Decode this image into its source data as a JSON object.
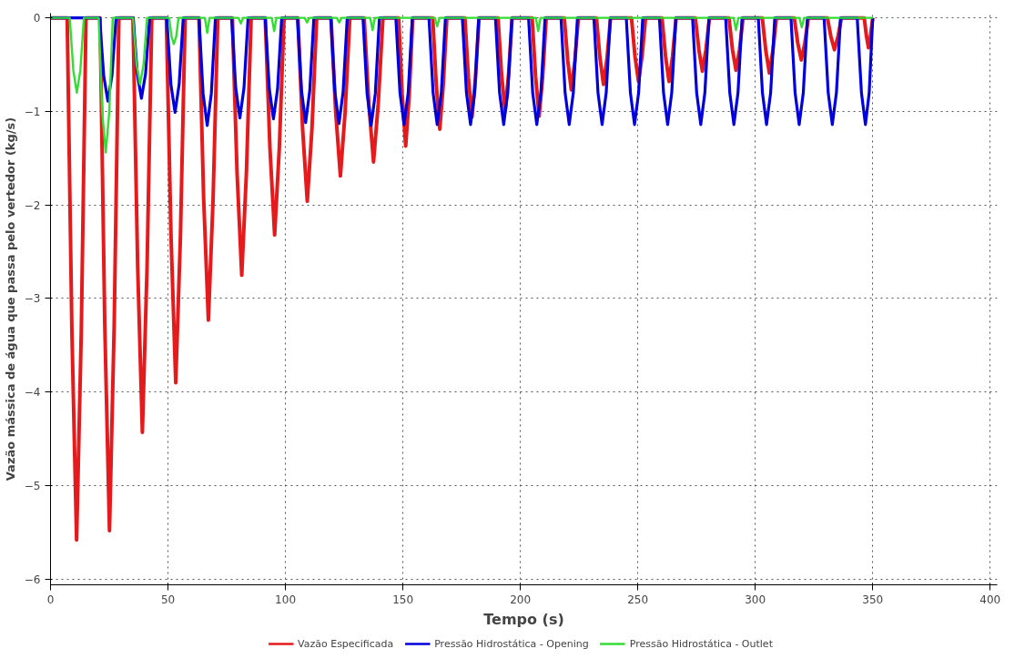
{
  "chart_data": {
    "type": "line",
    "xlabel": "Tempo (s)",
    "ylabel": "Vazão mássica de água que passa pelo vertedor (kg/s)",
    "xlim": [
      0,
      403
    ],
    "ylim": [
      -6.06,
      0.05
    ],
    "xticks": [
      0,
      50,
      100,
      150,
      200,
      250,
      300,
      350,
      400
    ],
    "yticks": [
      -6,
      -5,
      -4,
      -3,
      -2,
      -1,
      0
    ],
    "grid": true,
    "legend": "bottom",
    "line_style": "solid",
    "marker": "none",
    "series": [
      {
        "name": "Vazão Especificada",
        "color": "#e41a1c",
        "x": [
          0,
          7.1,
          9.1,
          11.1,
          13.1,
          15.1,
          21.1,
          23.1,
          25.1,
          27.1,
          29.1,
          35.1,
          37.1,
          39.1,
          41.1,
          43.1,
          49.3,
          51.3,
          53.3,
          55.3,
          57.3,
          63.2,
          65.2,
          67.2,
          69.2,
          71.2,
          77.4,
          79.4,
          81.4,
          83.4,
          85.4,
          91.4,
          93.4,
          95.4,
          97.4,
          99.4,
          105.3,
          107.3,
          109.3,
          111.3,
          113.3,
          119.4,
          121.4,
          123.4,
          125.4,
          127.4,
          133.5,
          135.5,
          137.5,
          139.5,
          141.5,
          148.2,
          149.7,
          151.2,
          152.7,
          154.2,
          162.7,
          164.2,
          165.7,
          167.2,
          168.7,
          176.4,
          177.9,
          179.4,
          180.9,
          182.4,
          190.5,
          192,
          193.5,
          195,
          196.5,
          205,
          206.5,
          208,
          209.5,
          211,
          218.7,
          220.2,
          221.7,
          223.2,
          224.7,
          232.4,
          233.9,
          235.4,
          236.9,
          238.4,
          247.3,
          248.8,
          250.3,
          251.8,
          253.3,
          260.3,
          261.8,
          263.3,
          264.8,
          266.3,
          274.5,
          276,
          277.5,
          279,
          280.5,
          288.8,
          290.3,
          291.8,
          293.3,
          294.8,
          303,
          304.5,
          306,
          307.5,
          309,
          316.6,
          318.1,
          319.6,
          321.1,
          322.6,
          330.7,
          332.2,
          333.7,
          335.2,
          336.7,
          346.4,
          347.3,
          348.2,
          349.1,
          350
        ],
        "values": [
          0,
          0,
          -3.35,
          -5.58,
          -3.35,
          0,
          0,
          -3.29,
          -5.48,
          -3.29,
          0,
          0,
          -2.66,
          -4.43,
          -2.66,
          0,
          0,
          -2.34,
          -3.9,
          -2.34,
          0,
          0,
          -1.94,
          -3.23,
          -1.94,
          0,
          0,
          -1.65,
          -2.75,
          -1.65,
          0,
          0,
          -1.39,
          -2.32,
          -1.39,
          0,
          0,
          -1.18,
          -1.96,
          -1.18,
          0,
          0,
          -1.01,
          -1.69,
          -1.01,
          0,
          0,
          -0.92,
          -1.54,
          -0.92,
          0,
          0,
          -0.82,
          -1.37,
          -0.82,
          0,
          0,
          -0.71,
          -1.19,
          -0.71,
          0,
          0,
          -0.64,
          -1.06,
          -0.64,
          0,
          0,
          -0.6,
          -1.0,
          -0.6,
          0,
          0,
          -0.63,
          -1.05,
          -0.63,
          0,
          0,
          -0.46,
          -0.77,
          -0.46,
          0,
          0,
          -0.43,
          -0.71,
          -0.43,
          0,
          0,
          -0.41,
          -0.68,
          -0.41,
          0,
          0,
          -0.41,
          -0.68,
          -0.41,
          0,
          0,
          -0.34,
          -0.57,
          -0.34,
          0,
          0,
          -0.34,
          -0.56,
          -0.34,
          0,
          0,
          -0.35,
          -0.59,
          -0.35,
          0,
          0,
          -0.27,
          -0.45,
          -0.27,
          0,
          0,
          -0.2,
          -0.34,
          -0.2,
          0,
          0,
          -0.19,
          -0.32,
          -0.19,
          0
        ]
      },
      {
        "name": "Pressão Hidrostática - Opening",
        "color": "#0000dd",
        "x": [
          0,
          20.9,
          22.65,
          24.4,
          26.15,
          27.9,
          35.2,
          36.95,
          38.7,
          40.45,
          42.2,
          49.5,
          51.25,
          53,
          54.75,
          56.5,
          63.2,
          64.95,
          66.7,
          68.45,
          70.2,
          77.1,
          78.85,
          80.6,
          82.35,
          84.1,
          91.4,
          93.15,
          94.9,
          96.65,
          98.4,
          105.1,
          106.85,
          108.6,
          110.35,
          112.1,
          119.3,
          121.05,
          122.8,
          124.55,
          126.3,
          133,
          134.75,
          136.5,
          138.25,
          140,
          147,
          148.75,
          150.5,
          152.25,
          154,
          161.1,
          162.85,
          164.6,
          166.35,
          168.1,
          175.3,
          177.05,
          178.8,
          180.55,
          182.3,
          189.4,
          191.15,
          192.9,
          194.65,
          196.4,
          203.5,
          205.25,
          207,
          208.75,
          210.5,
          217.3,
          219.05,
          220.8,
          222.55,
          224.3,
          231.3,
          233.05,
          234.8,
          236.55,
          238.3,
          245.1,
          246.85,
          248.6,
          250.35,
          252.1,
          259.2,
          260.95,
          262.7,
          264.45,
          266.2,
          273.3,
          275.05,
          276.8,
          278.55,
          280.3,
          287.4,
          289.15,
          290.9,
          292.65,
          294.4,
          301.3,
          303.05,
          304.8,
          306.55,
          308.3,
          315.2,
          316.95,
          318.7,
          320.45,
          322.2,
          329.3,
          331.05,
          332.8,
          334.55,
          336.3,
          343.4,
          345.2,
          346.9,
          348.5,
          350
        ],
        "values": [
          0,
          0,
          -0.62,
          -0.89,
          -0.62,
          0,
          0,
          -0.6,
          -0.86,
          -0.6,
          0,
          0,
          -0.71,
          -1.01,
          -0.71,
          0,
          0,
          -0.81,
          -1.15,
          -0.81,
          0,
          0,
          -0.75,
          -1.07,
          -0.75,
          0,
          0,
          -0.76,
          -1.08,
          -0.76,
          0,
          0,
          -0.78,
          -1.12,
          -0.78,
          0,
          0,
          -0.79,
          -1.13,
          -0.79,
          0,
          0,
          -0.81,
          -1.15,
          -0.81,
          0,
          0,
          -0.8,
          -1.14,
          -0.8,
          0,
          0,
          -0.8,
          -1.14,
          -0.8,
          0,
          0,
          -0.8,
          -1.14,
          -0.8,
          0,
          0,
          -0.8,
          -1.14,
          -0.8,
          0,
          0,
          -0.8,
          -1.14,
          -0.8,
          0,
          0,
          -0.8,
          -1.14,
          -0.8,
          0,
          0,
          -0.8,
          -1.14,
          -0.8,
          0,
          0,
          -0.8,
          -1.14,
          -0.8,
          0,
          0,
          -0.8,
          -1.14,
          -0.8,
          0,
          0,
          -0.8,
          -1.14,
          -0.8,
          0,
          0,
          -0.8,
          -1.14,
          -0.8,
          0,
          0,
          -0.8,
          -1.14,
          -0.8,
          0,
          0,
          -0.8,
          -1.14,
          -0.8,
          0,
          0,
          -0.8,
          -1.14,
          -0.8,
          0,
          0,
          -0.8,
          -1.14,
          -0.8,
          0
        ]
      },
      {
        "name": "Pressão Hidrostática - Outlet",
        "color": "#33dd33",
        "x": [
          0,
          8.2,
          9.7,
          11.2,
          12.7,
          14.2,
          20.5,
          22,
          23.5,
          25,
          26.5,
          35.1,
          36.6,
          38.1,
          39.6,
          41.1,
          50.5,
          51.5,
          52.5,
          53.5,
          54.5,
          65.7,
          66.7,
          67.7,
          80,
          81,
          82,
          94.2,
          95.2,
          96.2,
          108.2,
          109.2,
          110.2,
          121.9,
          122.9,
          123.9,
          136.1,
          137.1,
          138.1,
          163.6,
          164.6,
          165.6,
          206.6,
          207.6,
          208.6,
          290.8,
          291.8,
          292.8,
          318.8,
          319.8,
          320.8,
          350
        ],
        "values": [
          0,
          0,
          -0.56,
          -0.8,
          -0.56,
          0,
          0,
          -1.01,
          -1.44,
          -1.01,
          0,
          0,
          -0.5,
          -0.71,
          -0.5,
          0,
          0,
          -0.2,
          -0.28,
          -0.2,
          0,
          0,
          -0.16,
          0,
          0,
          -0.06,
          0,
          0,
          -0.14,
          0,
          0,
          -0.05,
          0,
          0,
          -0.05,
          0,
          0,
          -0.13,
          0,
          0,
          -0.09,
          0,
          0,
          -0.14,
          0,
          0,
          -0.13,
          0,
          0,
          -0.1,
          0,
          0
        ]
      }
    ]
  }
}
